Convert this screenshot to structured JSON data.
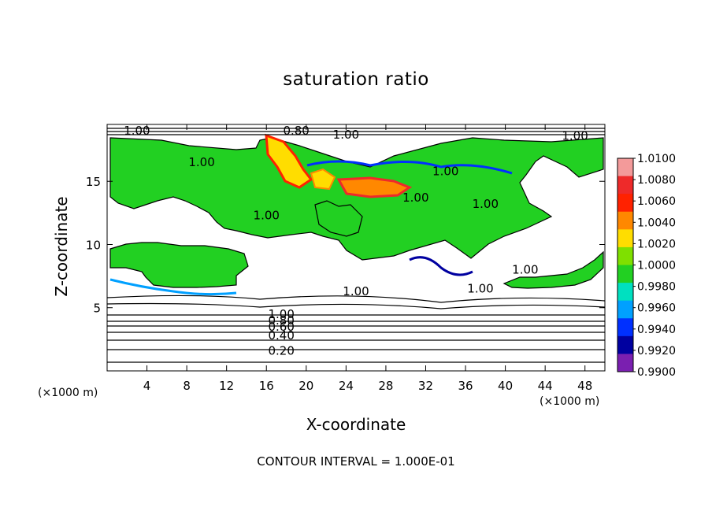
{
  "chart_data": {
    "type": "heatmap",
    "title": "saturation ratio",
    "xlabel": "X-coordinate",
    "ylabel": "Z-coordinate",
    "x_unit_label": "(×1000 m)",
    "footer": "CONTOUR INTERVAL = 1.000E-01",
    "xlim": [
      0,
      50
    ],
    "ylim": [
      0,
      19.5
    ],
    "x_ticks": [
      4,
      8,
      12,
      16,
      20,
      24,
      28,
      32,
      36,
      40,
      44,
      48
    ],
    "y_ticks": [
      5,
      10,
      15
    ],
    "colorbar": {
      "levels": [
        "1.0100",
        "1.0080",
        "1.0060",
        "1.0040",
        "1.0020",
        "1.0000",
        "0.9980",
        "0.9960",
        "0.9940",
        "0.9920",
        "0.9900"
      ],
      "colors": [
        "#f39a9a",
        "#ee2a2a",
        "#ff2200",
        "#ff8800",
        "#ffdd00",
        "#7fe000",
        "#22d022",
        "#00e0c0",
        "#00a0ff",
        "#0030ff",
        "#0000a0",
        "#7a1fb0"
      ]
    },
    "contour_labels": [
      {
        "text": "1.00",
        "x": 3,
        "y": 19.0
      },
      {
        "text": "0.80",
        "x": 19,
        "y": 19.0
      },
      {
        "text": "1.00",
        "x": 24,
        "y": 18.7
      },
      {
        "text": "1.00",
        "x": 47,
        "y": 18.6
      },
      {
        "text": "1.00",
        "x": 9.5,
        "y": 16.5
      },
      {
        "text": "1.00",
        "x": 34,
        "y": 15.8
      },
      {
        "text": "1.00",
        "x": 31,
        "y": 13.7
      },
      {
        "text": "1.00",
        "x": 38,
        "y": 13.2
      },
      {
        "text": "1.00",
        "x": 16,
        "y": 12.3
      },
      {
        "text": "1.00",
        "x": 42,
        "y": 8.0
      },
      {
        "text": "1.00",
        "x": 25,
        "y": 6.3
      },
      {
        "text": "1.00",
        "x": 37.5,
        "y": 6.5
      },
      {
        "text": "1.00",
        "x": 17.5,
        "y": 4.5
      },
      {
        "text": "0.80",
        "x": 17.5,
        "y": 4.0
      },
      {
        "text": "0.60",
        "x": 17.5,
        "y": 3.5
      },
      {
        "text": "0.40",
        "x": 17.5,
        "y": 2.8
      },
      {
        "text": "0.20",
        "x": 17.5,
        "y": 1.6
      }
    ]
  }
}
